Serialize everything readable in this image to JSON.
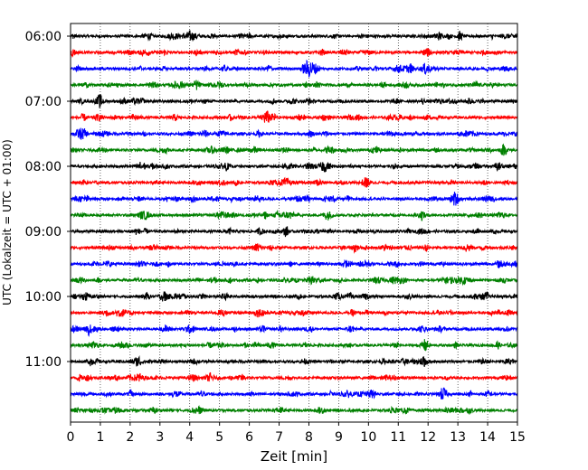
{
  "chart_data": {
    "type": "line",
    "title": "",
    "xlabel": "Zeit  [min]",
    "ylabel": "UTC (Lokalzeit = UTC + 01:00)",
    "xlim": [
      0,
      15
    ],
    "x_ticks": [
      "0",
      "1",
      "2",
      "3",
      "4",
      "5",
      "6",
      "7",
      "8",
      "9",
      "10",
      "11",
      "12",
      "13",
      "14",
      "15"
    ],
    "y_ticks": [
      "06:00",
      "07:00",
      "08:00",
      "09:00",
      "10:00",
      "11:00"
    ],
    "vertical_gridlines": "dotted, every 1 min",
    "trace_colors": [
      "#000000",
      "#ff0000",
      "#0000ff",
      "#008000"
    ],
    "series": [
      {
        "start": "06:00"
      },
      {
        "start": "06:15"
      },
      {
        "start": "06:30"
      },
      {
        "start": "06:45"
      },
      {
        "start": "07:00"
      },
      {
        "start": "07:15"
      },
      {
        "start": "07:30"
      },
      {
        "start": "07:45"
      },
      {
        "start": "08:00"
      },
      {
        "start": "08:15"
      },
      {
        "start": "08:30"
      },
      {
        "start": "08:45"
      },
      {
        "start": "09:00"
      },
      {
        "start": "09:15"
      },
      {
        "start": "09:30"
      },
      {
        "start": "09:45"
      },
      {
        "start": "10:00"
      },
      {
        "start": "10:15"
      },
      {
        "start": "10:30"
      },
      {
        "start": "10:45"
      },
      {
        "start": "11:00"
      },
      {
        "start": "11:15"
      },
      {
        "start": "11:30"
      },
      {
        "start": "11:45"
      }
    ],
    "events": [
      {
        "trace_start": "06:30",
        "minute": 8.0,
        "amplitude": "large"
      },
      {
        "trace_start": "06:00",
        "minute": 4.0,
        "amplitude": "moderate"
      },
      {
        "trace_start": "11:30",
        "minute": 12.5,
        "amplitude": "moderate"
      },
      {
        "trace_start": "08:30",
        "minute": 12.9,
        "amplitude": "moderate"
      }
    ]
  }
}
